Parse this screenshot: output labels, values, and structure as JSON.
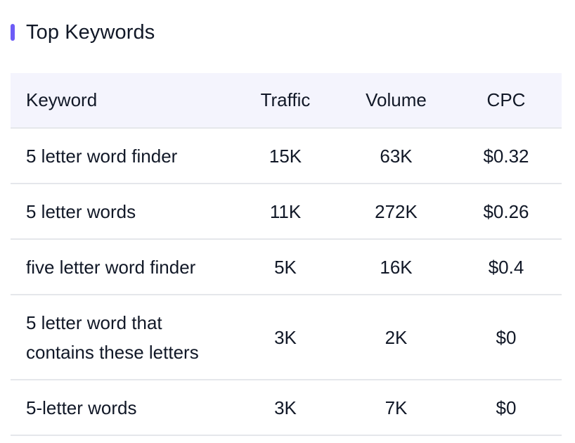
{
  "section": {
    "title": "Top Keywords",
    "accent_color": "#6d5cf6"
  },
  "table": {
    "columns": [
      "Keyword",
      "Traffic",
      "Volume",
      "CPC"
    ],
    "rows": [
      {
        "keyword": "5 letter word finder",
        "traffic": "15K",
        "volume": "63K",
        "cpc": "$0.32"
      },
      {
        "keyword": "5 letter words",
        "traffic": "11K",
        "volume": "272K",
        "cpc": "$0.26"
      },
      {
        "keyword": "five letter word finder",
        "traffic": "5K",
        "volume": "16K",
        "cpc": "$0.4"
      },
      {
        "keyword": "5 letter word that contains these letters",
        "traffic": "3K",
        "volume": "2K",
        "cpc": "$0"
      },
      {
        "keyword": "5-letter words",
        "traffic": "3K",
        "volume": "7K",
        "cpc": "$0"
      }
    ]
  },
  "colors": {
    "header_background": "#f4f4fd",
    "row_divider": "#e5e7eb",
    "text": "#111827"
  }
}
